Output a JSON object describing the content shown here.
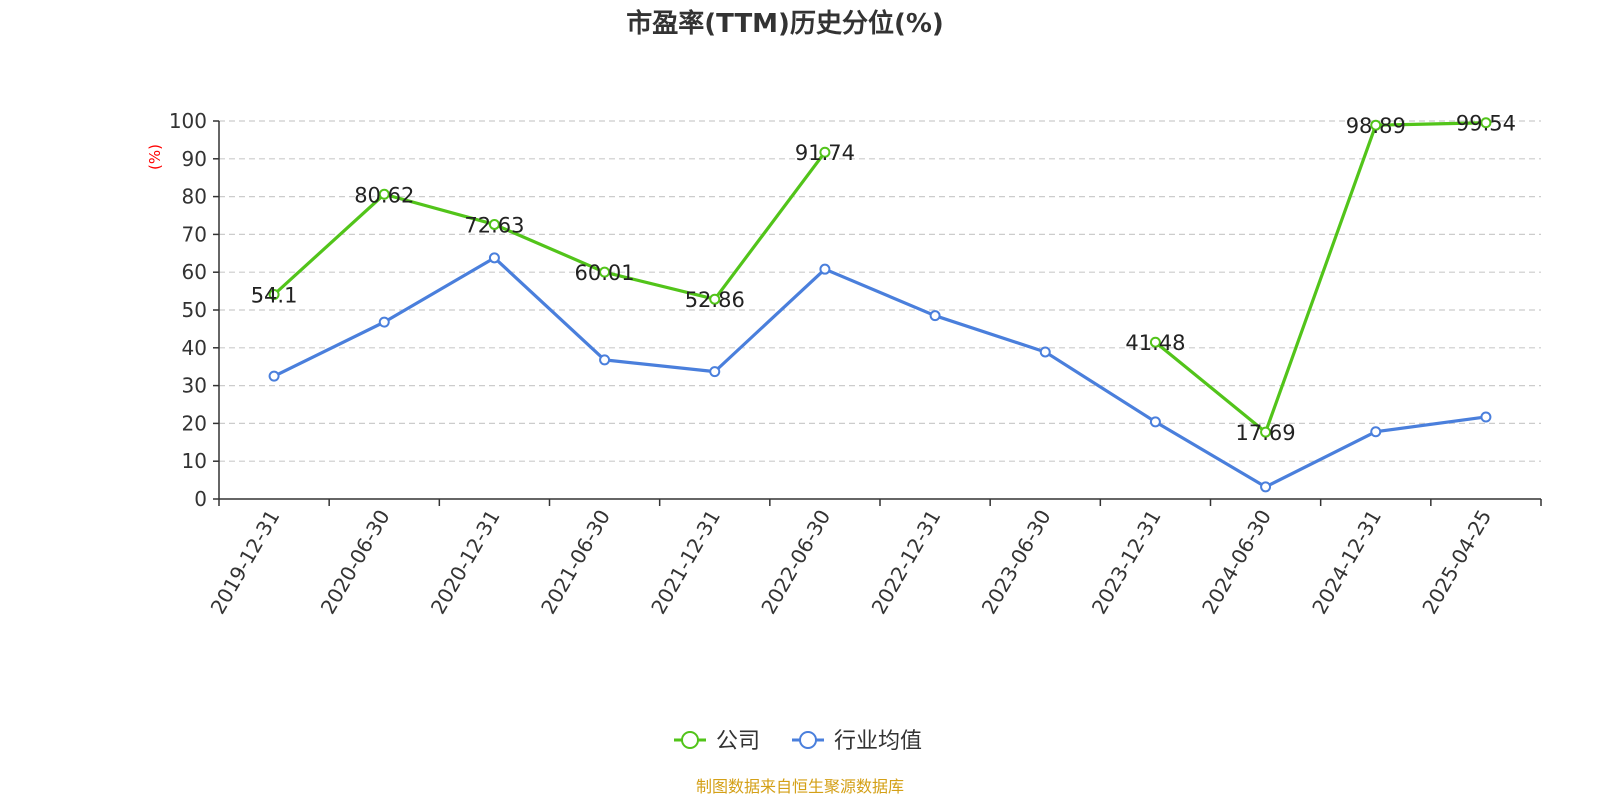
{
  "chart_data": {
    "type": "line",
    "title": "市盈率(TTM)历史分位(%)",
    "ylabel": "(%)",
    "xlabel": "",
    "ylim": [
      0,
      100
    ],
    "yticks": [
      0,
      10,
      20,
      30,
      40,
      50,
      60,
      70,
      80,
      90,
      100
    ],
    "categories": [
      "2019-12-31",
      "2020-06-30",
      "2020-12-31",
      "2021-06-30",
      "2021-12-31",
      "2022-06-30",
      "2022-12-31",
      "2023-06-30",
      "2023-12-31",
      "2024-06-30",
      "2024-12-31",
      "2025-04-25"
    ],
    "grid": true,
    "legend_position": "bottom",
    "series": [
      {
        "name": "公司",
        "color": "#52c41a",
        "show_labels": true,
        "values": [
          54.1,
          80.62,
          72.63,
          60.01,
          52.86,
          91.74,
          null,
          null,
          41.48,
          17.69,
          98.89,
          99.54
        ]
      },
      {
        "name": "行业均值",
        "color": "#4a7fdc",
        "show_labels": false,
        "values": [
          32.5,
          46.8,
          63.8,
          36.8,
          33.7,
          60.8,
          48.5,
          38.9,
          20.4,
          3.2,
          17.8,
          21.7
        ]
      }
    ]
  },
  "source_text": "制图数据来自恒生聚源数据库",
  "colors": {
    "source_text": "#d4a017",
    "ylabel": "#ff0000",
    "axis": "#333333",
    "grid": "#cccccc"
  }
}
